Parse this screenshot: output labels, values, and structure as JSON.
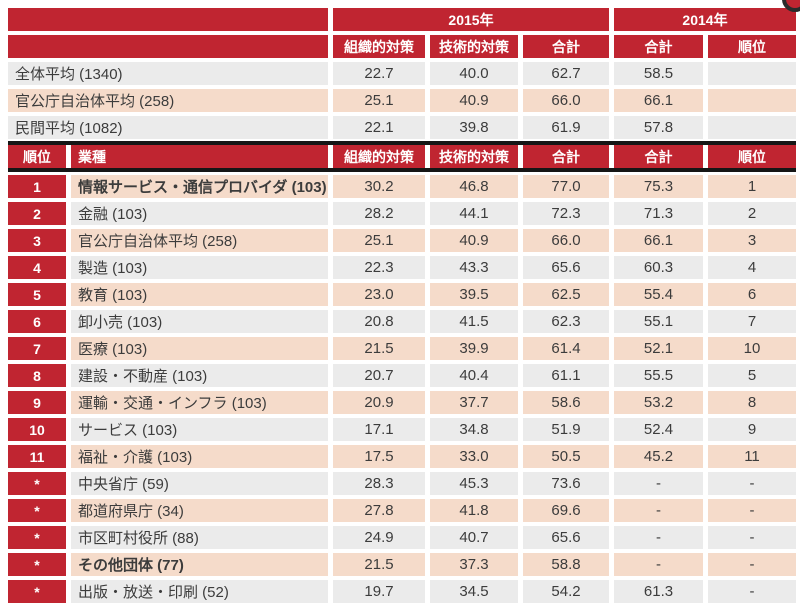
{
  "colors": {
    "header_red": "#c02531",
    "row_pink": "#f5dbca",
    "row_gray": "#ebebeb",
    "divider_black": "#161616",
    "text": "#3c3c3c"
  },
  "table": {
    "header": {
      "year_2015": "2015年",
      "year_2014": "2014年",
      "cols_2015": [
        "組織的対策",
        "技術的対策",
        "合計"
      ],
      "cols_2014": [
        "合計",
        "順位"
      ],
      "rank_col": "順位",
      "industry_col": "業種"
    },
    "summary_rows": [
      {
        "label": "全体平均 (1340)",
        "org": "22.7",
        "tech": "40.0",
        "total_2015": "62.7",
        "total_2014": "58.5",
        "rank_2014": ""
      },
      {
        "label": "官公庁自治体平均 (258)",
        "org": "25.1",
        "tech": "40.9",
        "total_2015": "66.0",
        "total_2014": "66.1",
        "rank_2014": ""
      },
      {
        "label": "民間平均 (1082)",
        "org": "22.1",
        "tech": "39.8",
        "total_2015": "61.9",
        "total_2014": "57.8",
        "rank_2014": ""
      }
    ],
    "industry_rows": [
      {
        "rank": "1",
        "industry": "情報サービス・通信プロバイダ (103)",
        "org": "30.2",
        "tech": "46.8",
        "total_2015": "77.0",
        "total_2014": "75.3",
        "rank_2014": "1",
        "bold": true
      },
      {
        "rank": "2",
        "industry": "金融 (103)",
        "org": "28.2",
        "tech": "44.1",
        "total_2015": "72.3",
        "total_2014": "71.3",
        "rank_2014": "2"
      },
      {
        "rank": "3",
        "industry": "官公庁自治体平均 (258)",
        "org": "25.1",
        "tech": "40.9",
        "total_2015": "66.0",
        "total_2014": "66.1",
        "rank_2014": "3"
      },
      {
        "rank": "4",
        "industry": "製造 (103)",
        "org": "22.3",
        "tech": "43.3",
        "total_2015": "65.6",
        "total_2014": "60.3",
        "rank_2014": "4"
      },
      {
        "rank": "5",
        "industry": "教育 (103)",
        "org": "23.0",
        "tech": "39.5",
        "total_2015": "62.5",
        "total_2014": "55.4",
        "rank_2014": "6"
      },
      {
        "rank": "6",
        "industry": "卸小売 (103)",
        "org": "20.8",
        "tech": "41.5",
        "total_2015": "62.3",
        "total_2014": "55.1",
        "rank_2014": "7"
      },
      {
        "rank": "7",
        "industry": "医療 (103)",
        "org": "21.5",
        "tech": "39.9",
        "total_2015": "61.4",
        "total_2014": "52.1",
        "rank_2014": "10"
      },
      {
        "rank": "8",
        "industry": "建設・不動産 (103)",
        "org": "20.7",
        "tech": "40.4",
        "total_2015": "61.1",
        "total_2014": "55.5",
        "rank_2014": "5"
      },
      {
        "rank": "9",
        "industry": "運輸・交通・インフラ (103)",
        "org": "20.9",
        "tech": "37.7",
        "total_2015": "58.6",
        "total_2014": "53.2",
        "rank_2014": "8"
      },
      {
        "rank": "10",
        "industry": "サービス (103)",
        "org": "17.1",
        "tech": "34.8",
        "total_2015": "51.9",
        "total_2014": "52.4",
        "rank_2014": "9"
      },
      {
        "rank": "11",
        "industry": "福祉・介護 (103)",
        "org": "17.5",
        "tech": "33.0",
        "total_2015": "50.5",
        "total_2014": "45.2",
        "rank_2014": "11"
      },
      {
        "rank": "*",
        "industry": "中央省庁 (59)",
        "org": "28.3",
        "tech": "45.3",
        "total_2015": "73.6",
        "total_2014": "-",
        "rank_2014": "-"
      },
      {
        "rank": "*",
        "industry": "都道府県庁 (34)",
        "org": "27.8",
        "tech": "41.8",
        "total_2015": "69.6",
        "total_2014": "-",
        "rank_2014": "-"
      },
      {
        "rank": "*",
        "industry": "市区町村役所 (88)",
        "org": "24.9",
        "tech": "40.7",
        "total_2015": "65.6",
        "total_2014": "-",
        "rank_2014": "-"
      },
      {
        "rank": "*",
        "industry": "その他団体 (77)",
        "org": "21.5",
        "tech": "37.3",
        "total_2015": "58.8",
        "total_2014": "-",
        "rank_2014": "-",
        "bold": true
      },
      {
        "rank": "*",
        "industry": "出版・放送・印刷 (52)",
        "org": "19.7",
        "tech": "34.5",
        "total_2015": "54.2",
        "total_2014": "61.3",
        "rank_2014": "-"
      }
    ]
  }
}
